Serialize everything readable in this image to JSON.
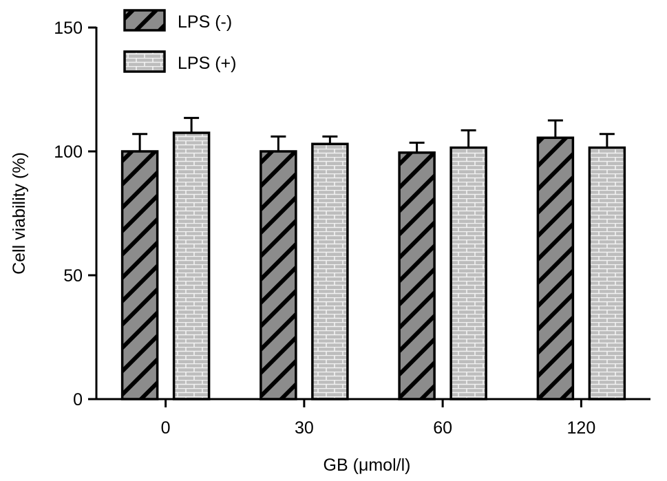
{
  "chart_data": {
    "type": "bar",
    "title": "",
    "xlabel": "GB (μmol/l)",
    "ylabel": "Cell viability (%)",
    "ylim": [
      0,
      150
    ],
    "yticks": [
      0,
      50,
      100,
      150
    ],
    "categories": [
      "0",
      "30",
      "60",
      "120"
    ],
    "series": [
      {
        "name": "LPS (-)",
        "values": [
          100,
          100,
          99.5,
          105.5
        ],
        "errors": [
          7,
          6,
          4,
          7
        ],
        "pattern": "diagonal-hatch"
      },
      {
        "name": "LPS (+)",
        "values": [
          107.5,
          103,
          101.5,
          101.5
        ],
        "errors": [
          6,
          3,
          7,
          5.5
        ],
        "pattern": "brick"
      }
    ],
    "legend_position": "top-left",
    "grid": false,
    "colors": {
      "hatch_fill": "#8c8c8c",
      "brick_fill": "#bdbdbd",
      "brick_lines": "#f2f2f2",
      "stroke": "#000000"
    }
  }
}
